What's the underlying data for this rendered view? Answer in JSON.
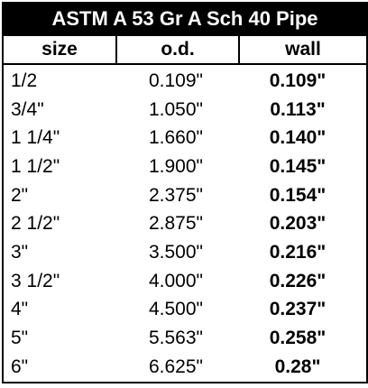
{
  "table": {
    "title": "ASTM A 53 Gr A Sch 40 Pipe",
    "headers": [
      "size",
      "o.d.",
      "wall"
    ],
    "rows": [
      {
        "size": "1/2",
        "od": "0.109\"",
        "wall": "0.109\""
      },
      {
        "size": "3/4\"",
        "od": "1.050\"",
        "wall": "0.113\""
      },
      {
        "size": "1 1/4\"",
        "od": "1.660\"",
        "wall": "0.140\""
      },
      {
        "size": "1 1/2\"",
        "od": "1.900\"",
        "wall": "0.145\""
      },
      {
        "size": "2\"",
        "od": "2.375\"",
        "wall": "0.154\""
      },
      {
        "size": "2 1/2\"",
        "od": "2.875\"",
        "wall": "0.203\""
      },
      {
        "size": "3\"",
        "od": "3.500\"",
        "wall": "0.216\""
      },
      {
        "size": "3 1/2\"",
        "od": "4.000\"",
        "wall": "0.226\""
      },
      {
        "size": "4\"",
        "od": "4.500\"",
        "wall": "0.237\""
      },
      {
        "size": "5\"",
        "od": "5.563\"",
        "wall": "0.258\""
      },
      {
        "size": "6\"",
        "od": "6.625\"",
        "wall": "0.28\""
      }
    ]
  }
}
